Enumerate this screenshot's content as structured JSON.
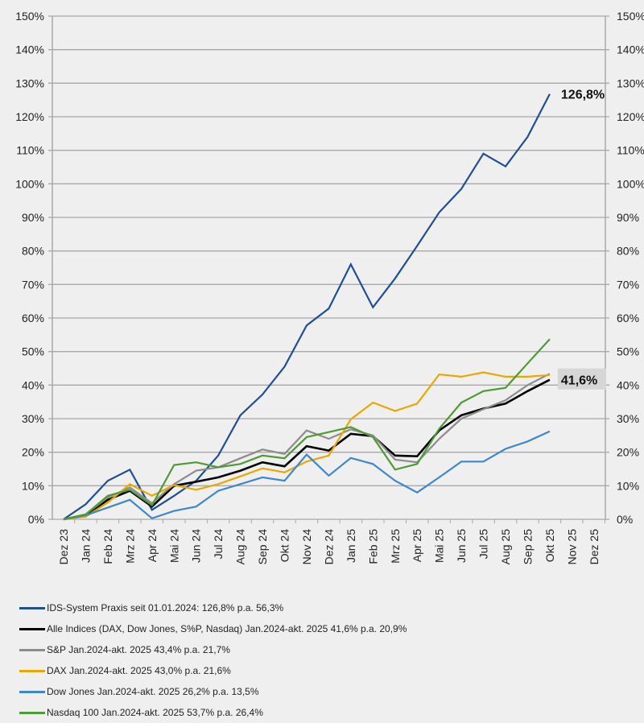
{
  "chart_data": {
    "type": "line",
    "title": "",
    "xlabel": "",
    "ylabel": "",
    "ylim": [
      0,
      150
    ],
    "y_ticks": [
      "0%",
      "10%",
      "20%",
      "30%",
      "40%",
      "50%",
      "60%",
      "70%",
      "80%",
      "90%",
      "100%",
      "110%",
      "120%",
      "130%",
      "140%",
      "150%"
    ],
    "secondary_y_axis": true,
    "grid": true,
    "legend_position": "bottom",
    "categories": [
      "Dez 23",
      "Jan 24",
      "Feb 24",
      "Mrz 24",
      "Apr 24",
      "Mai 24",
      "Jun 24",
      "Jul 24",
      "Aug 24",
      "Sep 24",
      "Okt 24",
      "Nov 24",
      "Dez 24",
      "Jan 25",
      "Feb 25",
      "Mrz 25",
      "Apr 25",
      "Mai 25",
      "Jun 25",
      "Jul 25",
      "Aug 25",
      "Sep 25",
      "Okt 25",
      "Nov 25",
      "Dez 25"
    ],
    "series": [
      {
        "name": "IDS-System Praxis seit 01.01.2024: 126,8% p.a. 56,3%",
        "color": "#1f4e96",
        "width": 2.2,
        "values": [
          0,
          4.5,
          11.5,
          14.8,
          2.8,
          7,
          11.5,
          19,
          31,
          37.2,
          45.5,
          57.8,
          62.8,
          76,
          63.2,
          71.8,
          81.5,
          91.5,
          98.5,
          109,
          105.2,
          114,
          126.8
        ]
      },
      {
        "name": "Alle Indices (DAX, Dow Jones, S%P, Nasdaq) Jan.2024-akt. 2025 41,6% p.a. 20,9%",
        "color": "#000000",
        "width": 2.6,
        "values": [
          0,
          1.2,
          5.8,
          8.5,
          3.8,
          10,
          11.2,
          12.5,
          14.5,
          17,
          15.8,
          21.8,
          20.5,
          25.5,
          24.8,
          19,
          18.8,
          26.5,
          31,
          33,
          34.5,
          38.2,
          41.6
        ]
      },
      {
        "name": "S&P Jan.2024-akt. 2025 43,4% p.a. 21,7%",
        "color": "#8c8c8c",
        "width": 2.2,
        "values": [
          0,
          1.5,
          6.5,
          9.5,
          4.8,
          10.5,
          14.5,
          15.5,
          18.2,
          20.8,
          19.5,
          26.5,
          24,
          26.8,
          25,
          17.8,
          17,
          24,
          30,
          32.8,
          35.5,
          40,
          43.4
        ]
      },
      {
        "name": "DAX Jan.2024-akt. 2025 43,0% p.a. 21,6%",
        "color": "#e8a800",
        "width": 2.2,
        "values": [
          0,
          0.8,
          5,
          10.5,
          7,
          10.2,
          8.8,
          10.5,
          12.8,
          15.2,
          14,
          17.2,
          19,
          29.8,
          34.8,
          32.3,
          34.5,
          43.2,
          42.5,
          43.8,
          42.5,
          42.5,
          43.0
        ]
      },
      {
        "name": "Dow Jones Jan.2024-akt. 2025 26,2% p.a. 13,5%",
        "color": "#3f87c8",
        "width": 2.2,
        "values": [
          0,
          1.2,
          3.5,
          5.8,
          0.3,
          2.5,
          3.8,
          8.5,
          10.5,
          12.5,
          11.5,
          19.3,
          13,
          18.3,
          16.5,
          11.5,
          8,
          12.5,
          17.2,
          17.2,
          21,
          23.2,
          26.2
        ]
      },
      {
        "name": "Nasdaq 100 Jan.2024-akt. 2025 53,7% p.a. 26,4%",
        "color": "#4e9a34",
        "width": 2.2,
        "values": [
          0,
          1.5,
          7,
          8.8,
          4.2,
          16.2,
          17,
          15.5,
          16.5,
          19,
          18.2,
          24.5,
          26,
          27.5,
          24.5,
          14.8,
          16.5,
          27,
          34.8,
          38.2,
          39.2,
          46.5,
          53.7
        ]
      }
    ],
    "annotations": [
      {
        "text": "126,8%",
        "series": 0,
        "x": "Okt 25",
        "y": 126.8,
        "boxed": false
      },
      {
        "text": "41,6%",
        "series": 1,
        "x": "Okt 25",
        "y": 41.6,
        "boxed": true
      }
    ]
  }
}
